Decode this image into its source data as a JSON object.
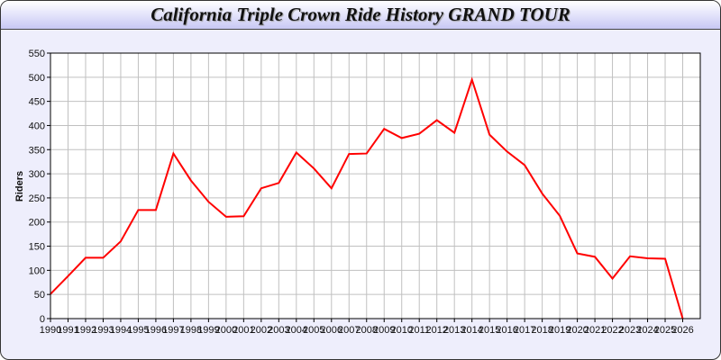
{
  "chart_data": {
    "type": "line",
    "title": "California Triple Crown Ride History GRAND TOUR",
    "xlabel": "",
    "ylabel": "Riders",
    "xlim": [
      1990,
      2027
    ],
    "ylim": [
      0,
      550
    ],
    "ytick_step": 50,
    "grid": true,
    "line_color": "#ff0000",
    "grid_color": "#c0c0c0",
    "x": [
      1990,
      1991,
      1992,
      1993,
      1994,
      1995,
      1996,
      1997,
      1998,
      1999,
      2000,
      2001,
      2002,
      2003,
      2004,
      2005,
      2006,
      2007,
      2008,
      2009,
      2010,
      2011,
      2012,
      2013,
      2014,
      2015,
      2016,
      2017,
      2018,
      2019,
      2020,
      2021,
      2022,
      2023,
      2024,
      2025,
      2026
    ],
    "values": [
      51,
      88,
      126,
      126,
      160,
      225,
      225,
      342,
      286,
      242,
      211,
      212,
      270,
      281,
      344,
      311,
      270,
      341,
      342,
      393,
      374,
      383,
      411,
      385,
      495,
      381,
      346,
      318,
      259,
      213,
      135,
      128,
      83,
      129,
      125,
      124,
      0
    ]
  }
}
